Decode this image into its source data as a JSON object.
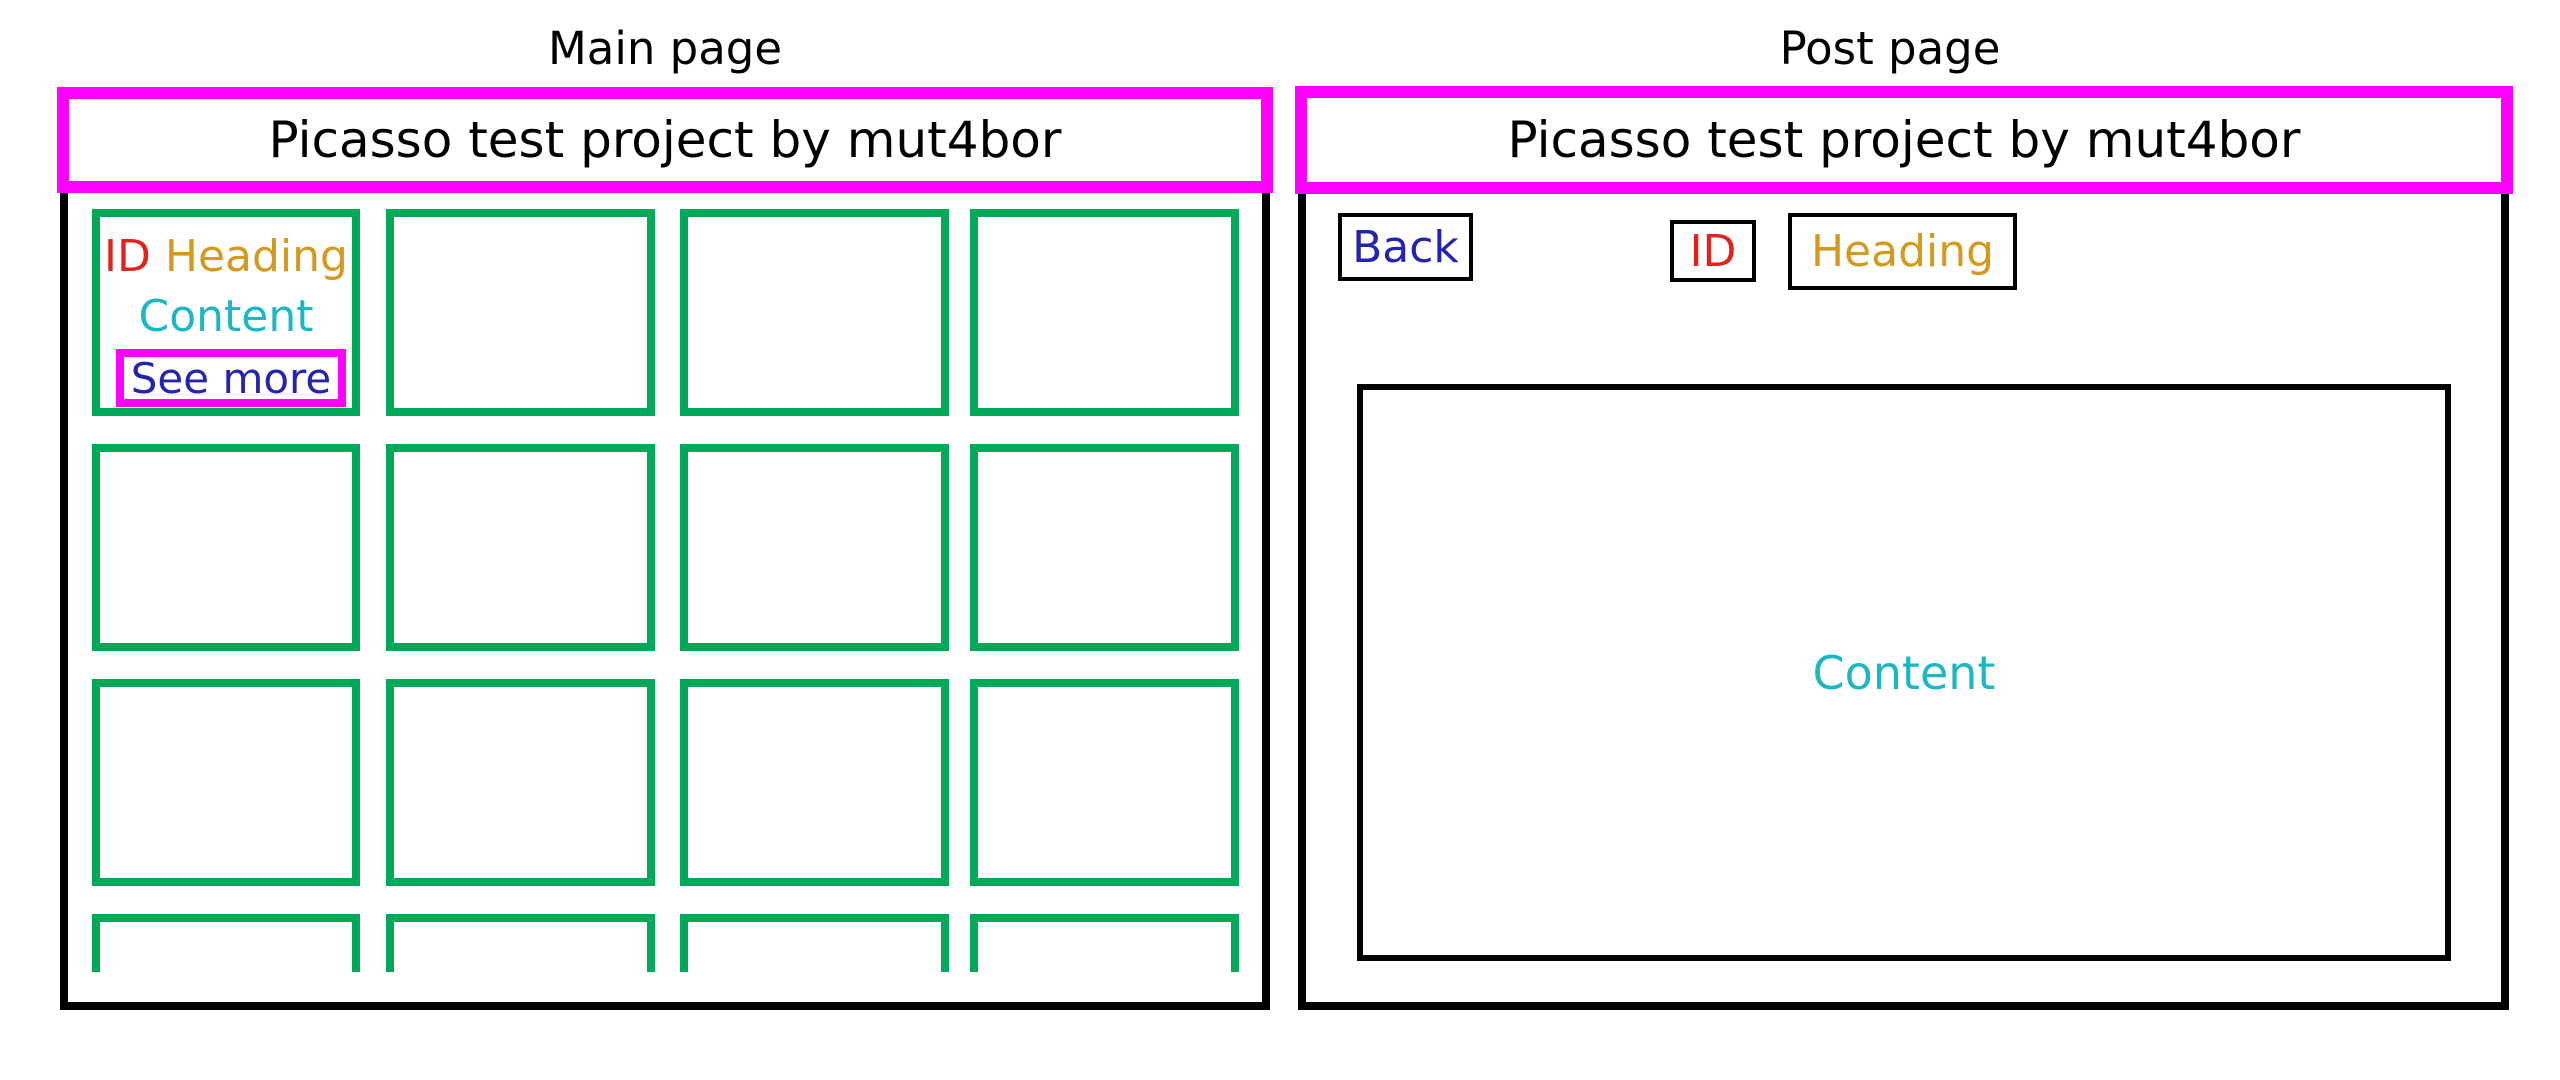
{
  "main_page": {
    "title": "Main page",
    "header_text": "Picasso test project by mut4bor",
    "card": {
      "id": "ID",
      "heading": "Heading",
      "content": "Content",
      "see_more": "See more"
    }
  },
  "post_page": {
    "title": "Post page",
    "header_text": "Picasso test project by mut4bor",
    "back": "Back",
    "id": "ID",
    "heading": "Heading",
    "content": "Content"
  },
  "colors": {
    "header_border": "#ff00ff",
    "card_border": "#00a85a",
    "id": "#e0231e",
    "heading": "#d49a1e",
    "content": "#1bb8c4",
    "link": "#2424b0"
  }
}
